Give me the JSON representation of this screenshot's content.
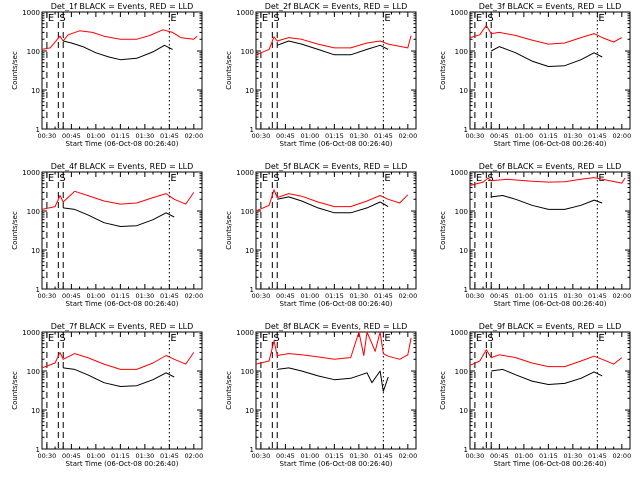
{
  "figure": {
    "background": "#ffffff",
    "axis_color": "#000000",
    "events_color": "#000000",
    "lld_color": "#ff0000"
  },
  "chart_data": [
    {
      "type": "line",
      "title": "Det_1f BLACK = Events, RED = LLD",
      "xlabel": "Start Time (06-Oct-08 00:26:40)",
      "ylabel": "Counts/sec",
      "yscale": "log",
      "ylim": [
        1,
        1000
      ],
      "y_ticks": [
        "1",
        "10",
        "100",
        "1000"
      ],
      "x_ticks": [
        "00:30",
        "00:45",
        "01:00",
        "01:15",
        "01:30",
        "01:45",
        "02:00"
      ],
      "xlim_minutes": [
        27,
        125
      ],
      "markers": [
        {
          "label": "E",
          "time": "00:30",
          "style": "dashed"
        },
        {
          "label": "S",
          "time": "00:37",
          "style": "dashed"
        },
        {
          "label": "",
          "time": "00:40",
          "style": "dashed"
        },
        {
          "label": "E",
          "time": "01:45",
          "style": "dotted"
        }
      ],
      "series": [
        {
          "color": "#ff0000",
          "x": [
            "00:27",
            "00:32",
            "00:38",
            "00:40",
            "00:43",
            "00:50",
            "00:58",
            "01:05",
            "01:15",
            "01:25",
            "01:33",
            "01:41",
            "01:47",
            "01:52",
            "02:00",
            "02:02"
          ],
          "values": [
            110,
            120,
            240,
            180,
            260,
            330,
            300,
            240,
            200,
            200,
            250,
            350,
            300,
            220,
            200,
            240
          ]
        },
        {
          "color": "#000000",
          "x": [
            "00:40",
            "00:45",
            "00:52",
            "01:00",
            "01:08",
            "01:15",
            "01:25",
            "01:35",
            "01:42",
            "01:47"
          ],
          "values": [
            180,
            160,
            130,
            90,
            70,
            60,
            65,
            95,
            140,
            110
          ]
        }
      ]
    },
    {
      "type": "line",
      "title": "Det_2f BLACK = Events, RED = LLD",
      "xlabel": "Start Time (06-Oct-08 00:26:40)",
      "ylabel": "Counts/sec",
      "yscale": "log",
      "ylim": [
        1,
        1000
      ],
      "y_ticks": [
        "1",
        "10",
        "100",
        "1000"
      ],
      "x_ticks": [
        "00:30",
        "00:45",
        "01:00",
        "01:15",
        "01:30",
        "01:45",
        "02:00"
      ],
      "xlim_minutes": [
        27,
        125
      ],
      "markers": [
        {
          "label": "E",
          "time": "00:30",
          "style": "dashed"
        },
        {
          "label": "S",
          "time": "00:37",
          "style": "dashed"
        },
        {
          "label": "",
          "time": "00:40",
          "style": "dashed"
        },
        {
          "label": "E",
          "time": "01:45",
          "style": "dotted"
        }
      ],
      "series": [
        {
          "color": "#ff0000",
          "x": [
            "00:27",
            "00:35",
            "00:38",
            "00:40",
            "00:47",
            "00:55",
            "01:05",
            "01:15",
            "01:25",
            "01:35",
            "01:43",
            "01:48",
            "02:00",
            "02:02"
          ],
          "values": [
            80,
            110,
            230,
            180,
            220,
            200,
            150,
            120,
            120,
            160,
            180,
            150,
            120,
            250
          ]
        },
        {
          "color": "#000000",
          "x": [
            "00:40",
            "00:47",
            "00:55",
            "01:05",
            "01:15",
            "01:25",
            "01:35",
            "01:43",
            "01:48"
          ],
          "values": [
            140,
            180,
            150,
            110,
            80,
            80,
            110,
            140,
            110
          ]
        }
      ]
    },
    {
      "type": "line",
      "title": "Det_3f BLACK = Events, RED = LLD",
      "xlabel": "Start Time (06-Oct-08 00:26:40)",
      "ylabel": "Counts/sec",
      "yscale": "log",
      "ylim": [
        1,
        1000
      ],
      "y_ticks": [
        "1",
        "10",
        "100",
        "1000"
      ],
      "x_ticks": [
        "00:30",
        "00:45",
        "01:00",
        "01:15",
        "01:30",
        "01:45",
        "02:00"
      ],
      "xlim_minutes": [
        27,
        125
      ],
      "markers": [
        {
          "label": "E",
          "time": "00:30",
          "style": "dashed"
        },
        {
          "label": "S",
          "time": "00:37",
          "style": "dashed"
        },
        {
          "label": "",
          "time": "00:40",
          "style": "dashed"
        },
        {
          "label": "E",
          "time": "01:45",
          "style": "dotted"
        }
      ],
      "series": [
        {
          "color": "#ff0000",
          "x": [
            "00:27",
            "00:33",
            "00:37",
            "00:40",
            "00:45",
            "00:55",
            "01:05",
            "01:15",
            "01:25",
            "01:35",
            "01:43",
            "01:48",
            "01:55",
            "02:00"
          ],
          "values": [
            220,
            260,
            450,
            280,
            300,
            250,
            190,
            150,
            160,
            220,
            280,
            220,
            170,
            220
          ]
        },
        {
          "color": "#000000",
          "x": [
            "00:40",
            "00:45",
            "00:55",
            "01:05",
            "01:15",
            "01:25",
            "01:35",
            "01:43",
            "01:48"
          ],
          "values": [
            100,
            130,
            90,
            55,
            40,
            42,
            60,
            90,
            70
          ]
        }
      ]
    },
    {
      "type": "line",
      "title": "Det_4f BLACK = Events, RED = LLD",
      "xlabel": "Start Time (06-Oct-08 00:26:40)",
      "ylabel": "Counts/sec",
      "yscale": "log",
      "ylim": [
        1,
        1000
      ],
      "y_ticks": [
        "1",
        "10",
        "100",
        "1000"
      ],
      "x_ticks": [
        "00:30",
        "00:45",
        "01:00",
        "01:15",
        "01:30",
        "01:45",
        "02:00"
      ],
      "xlim_minutes": [
        27,
        125
      ],
      "markers": [
        {
          "label": "E",
          "time": "00:30",
          "style": "dashed"
        },
        {
          "label": "S",
          "time": "00:37",
          "style": "dashed"
        },
        {
          "label": "",
          "time": "00:40",
          "style": "dashed"
        },
        {
          "label": "E",
          "time": "01:45",
          "style": "dotted"
        }
      ],
      "series": [
        {
          "color": "#ff0000",
          "x": [
            "00:27",
            "00:35",
            "00:38",
            "00:40",
            "00:47",
            "00:55",
            "01:05",
            "01:15",
            "01:25",
            "01:35",
            "01:43",
            "01:48",
            "01:55",
            "02:00"
          ],
          "values": [
            110,
            130,
            250,
            170,
            320,
            250,
            180,
            150,
            160,
            220,
            280,
            200,
            150,
            300
          ]
        },
        {
          "color": "#000000",
          "x": [
            "00:40",
            "00:47",
            "00:55",
            "01:05",
            "01:15",
            "01:25",
            "01:35",
            "01:43",
            "01:48"
          ],
          "values": [
            120,
            110,
            80,
            50,
            40,
            42,
            60,
            90,
            70
          ]
        }
      ]
    },
    {
      "type": "line",
      "title": "Det_5f BLACK = Events, RED = LLD",
      "xlabel": "Start Time (06-Oct-08 00:26:40)",
      "ylabel": "Counts/sec",
      "yscale": "log",
      "ylim": [
        1,
        1000
      ],
      "y_ticks": [
        "1",
        "10",
        "100",
        "1000"
      ],
      "x_ticks": [
        "00:30",
        "00:45",
        "01:00",
        "01:15",
        "01:30",
        "01:45",
        "02:00"
      ],
      "xlim_minutes": [
        27,
        125
      ],
      "markers": [
        {
          "label": "E",
          "time": "00:30",
          "style": "dashed"
        },
        {
          "label": "S",
          "time": "00:37",
          "style": "dashed"
        },
        {
          "label": "",
          "time": "00:40",
          "style": "dashed"
        },
        {
          "label": "E",
          "time": "01:45",
          "style": "dotted"
        }
      ],
      "series": [
        {
          "color": "#ff0000",
          "x": [
            "00:27",
            "00:35",
            "00:38",
            "00:40",
            "00:47",
            "00:55",
            "01:05",
            "01:15",
            "01:25",
            "01:35",
            "01:43",
            "01:48",
            "01:55",
            "02:00"
          ],
          "values": [
            100,
            140,
            350,
            220,
            280,
            240,
            170,
            130,
            130,
            180,
            250,
            200,
            160,
            260
          ]
        },
        {
          "color": "#000000",
          "x": [
            "00:40",
            "00:47",
            "00:55",
            "01:05",
            "01:15",
            "01:25",
            "01:35",
            "01:43",
            "01:48"
          ],
          "values": [
            200,
            230,
            180,
            120,
            90,
            90,
            120,
            170,
            130
          ]
        }
      ]
    },
    {
      "type": "line",
      "title": "Det_6f BLACK = Events, RED = LLD",
      "xlabel": "Start Time (06-Oct-08 00:26:40)",
      "ylabel": "Counts/sec",
      "yscale": "log",
      "ylim": [
        1,
        1000
      ],
      "y_ticks": [
        "1",
        "10",
        "100",
        "1000"
      ],
      "x_ticks": [
        "00:30",
        "00:45",
        "01:00",
        "01:15",
        "01:30",
        "01:45",
        "02:00"
      ],
      "xlim_minutes": [
        27,
        125
      ],
      "markers": [
        {
          "label": "E",
          "time": "00:30",
          "style": "dashed"
        },
        {
          "label": "S",
          "time": "00:37",
          "style": "dashed"
        },
        {
          "label": "",
          "time": "00:40",
          "style": "dashed"
        },
        {
          "label": "E",
          "time": "01:45",
          "style": "dotted"
        }
      ],
      "series": [
        {
          "color": "#ff0000",
          "x": [
            "00:27",
            "00:35",
            "00:38",
            "00:40",
            "00:50",
            "01:05",
            "01:15",
            "01:25",
            "01:35",
            "01:43",
            "01:48",
            "02:00",
            "02:02"
          ],
          "values": [
            450,
            550,
            700,
            600,
            650,
            580,
            550,
            560,
            650,
            720,
            650,
            520,
            700
          ]
        },
        {
          "color": "#000000",
          "x": [
            "00:40",
            "00:47",
            "00:55",
            "01:05",
            "01:15",
            "01:25",
            "01:35",
            "01:43",
            "01:48"
          ],
          "values": [
            230,
            250,
            200,
            140,
            110,
            110,
            140,
            190,
            160
          ]
        }
      ]
    },
    {
      "type": "line",
      "title": "Det_7f BLACK = Events, RED = LLD",
      "xlabel": "Start Time (06-Oct-08 00:26:40)",
      "ylabel": "Counts/sec",
      "yscale": "log",
      "ylim": [
        1,
        1000
      ],
      "y_ticks": [
        "1",
        "10",
        "100",
        "1000"
      ],
      "x_ticks": [
        "00:30",
        "00:45",
        "01:00",
        "01:15",
        "01:30",
        "01:45",
        "02:00"
      ],
      "xlim_minutes": [
        27,
        125
      ],
      "markers": [
        {
          "label": "E",
          "time": "00:30",
          "style": "dashed"
        },
        {
          "label": "S",
          "time": "00:37",
          "style": "dashed"
        },
        {
          "label": "",
          "time": "00:40",
          "style": "dashed"
        },
        {
          "label": "E",
          "time": "01:45",
          "style": "dotted"
        }
      ],
      "series": [
        {
          "color": "#ff0000",
          "x": [
            "00:27",
            "00:35",
            "00:38",
            "00:40",
            "00:47",
            "00:55",
            "01:05",
            "01:15",
            "01:25",
            "01:35",
            "01:43",
            "01:48",
            "01:55",
            "02:00"
          ],
          "values": [
            120,
            160,
            300,
            200,
            280,
            220,
            150,
            110,
            110,
            160,
            250,
            200,
            150,
            300
          ]
        },
        {
          "color": "#000000",
          "x": [
            "00:40",
            "00:47",
            "00:55",
            "01:05",
            "01:15",
            "01:25",
            "01:35",
            "01:43",
            "01:48"
          ],
          "values": [
            120,
            110,
            80,
            50,
            40,
            42,
            60,
            90,
            70
          ]
        }
      ]
    },
    {
      "type": "line",
      "title": "Det_8f BLACK = Events, RED = LLD",
      "xlabel": "Start Time (06-Oct-08 00:26:40)",
      "ylabel": "Counts/sec",
      "yscale": "log",
      "ylim": [
        1,
        1000
      ],
      "y_ticks": [
        "1",
        "10",
        "100",
        "1000"
      ],
      "x_ticks": [
        "00:30",
        "00:45",
        "01:00",
        "01:15",
        "01:30",
        "01:45",
        "02:00"
      ],
      "xlim_minutes": [
        27,
        125
      ],
      "markers": [
        {
          "label": "E",
          "time": "00:30",
          "style": "dashed"
        },
        {
          "label": "S",
          "time": "00:37",
          "style": "dashed"
        },
        {
          "label": "",
          "time": "00:40",
          "style": "dashed"
        },
        {
          "label": "E",
          "time": "01:45",
          "style": "dotted"
        }
      ],
      "series": [
        {
          "color": "#ff0000",
          "x": [
            "00:27",
            "00:35",
            "00:38",
            "00:40",
            "00:47",
            "00:55",
            "01:05",
            "01:15",
            "01:20",
            "01:25",
            "01:30",
            "01:33",
            "01:35",
            "01:40",
            "01:43",
            "01:45",
            "01:48",
            "01:55",
            "02:00",
            "02:02"
          ],
          "values": [
            150,
            180,
            600,
            250,
            280,
            260,
            230,
            200,
            210,
            220,
            1000,
            250,
            1000,
            320,
            1000,
            280,
            240,
            200,
            260,
            700
          ]
        },
        {
          "color": "#000000",
          "x": [
            "00:40",
            "00:47",
            "00:55",
            "01:05",
            "01:15",
            "01:25",
            "01:35",
            "01:38",
            "01:43",
            "01:45",
            "01:48"
          ],
          "values": [
            110,
            120,
            100,
            75,
            60,
            65,
            90,
            50,
            100,
            30,
            70
          ]
        }
      ]
    },
    {
      "type": "line",
      "title": "Det_9f BLACK = Events, RED = LLD",
      "xlabel": "Start Time (06-Oct-08 00:26:40)",
      "ylabel": "Counts/sec",
      "yscale": "log",
      "ylim": [
        1,
        1000
      ],
      "y_ticks": [
        "1",
        "10",
        "100",
        "1000"
      ],
      "x_ticks": [
        "00:30",
        "00:45",
        "01:00",
        "01:15",
        "01:30",
        "01:45",
        "02:00"
      ],
      "xlim_minutes": [
        27,
        125
      ],
      "markers": [
        {
          "label": "E",
          "time": "00:30",
          "style": "dashed"
        },
        {
          "label": "S",
          "time": "00:37",
          "style": "dashed"
        },
        {
          "label": "",
          "time": "00:40",
          "style": "dashed"
        },
        {
          "label": "E",
          "time": "01:45",
          "style": "dotted"
        }
      ],
      "series": [
        {
          "color": "#ff0000",
          "x": [
            "00:27",
            "00:33",
            "00:37",
            "00:40",
            "00:45",
            "00:55",
            "01:05",
            "01:15",
            "01:25",
            "01:35",
            "01:43",
            "01:48",
            "01:55",
            "02:00"
          ],
          "values": [
            140,
            180,
            350,
            220,
            260,
            220,
            160,
            130,
            130,
            180,
            240,
            200,
            150,
            220
          ]
        },
        {
          "color": "#000000",
          "x": [
            "00:40",
            "00:47",
            "00:55",
            "01:05",
            "01:15",
            "01:25",
            "01:35",
            "01:43",
            "01:48"
          ],
          "values": [
            100,
            110,
            80,
            55,
            45,
            48,
            65,
            95,
            75
          ]
        }
      ]
    }
  ]
}
